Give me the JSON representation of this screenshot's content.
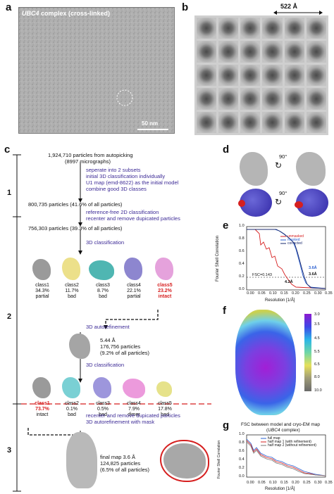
{
  "panels": {
    "a": "a",
    "b": "b",
    "c": "c",
    "d": "d",
    "e": "e",
    "f": "f",
    "g": "g"
  },
  "panel_a": {
    "title_italic": "UBC4",
    "title_rest": " complex (cross-linked)",
    "scale_bar": "50 nm"
  },
  "panel_b": {
    "scale": "522 Å"
  },
  "panel_c": {
    "stages": [
      "1",
      "2",
      "3"
    ],
    "autopicking": "1,924,710 particles from autopicking",
    "micrographs": "(8997 micrographs)",
    "step1": [
      "seperate into 2 subsets",
      "initial 3D classification individually",
      "U1 map (emd-8622) as the initial model",
      "combine good 3D classes"
    ],
    "result1": "800,735 particles (41.6% of all particles)",
    "step2": [
      "reference-free 2D classification",
      "recenter and remove dupicated particles"
    ],
    "result2": "756,303 particles (39.3% of all particles)",
    "step3": "3D classification",
    "classes_round1": [
      {
        "name": "class1",
        "pct": "34.3%",
        "status": "partial",
        "highlight": false
      },
      {
        "name": "class2",
        "pct": "11.7%",
        "status": "bad",
        "highlight": false
      },
      {
        "name": "class3",
        "pct": "8.7%",
        "status": "bad",
        "highlight": false
      },
      {
        "name": "class4",
        "pct": "22.1%",
        "status": "partial",
        "highlight": false
      },
      {
        "name": "class5",
        "pct": "23.2%",
        "status": "intact",
        "highlight": true
      }
    ],
    "step4": "3D autorefinement",
    "refine_res": "5.44 Å",
    "refine_particles": "176,756 particles",
    "refine_pct": "(9.2% of all particles)",
    "step5": "3D classification",
    "classes_round2": [
      {
        "name": "class1",
        "pct": "73.7%",
        "status": "intact",
        "highlight": true
      },
      {
        "name": "class2",
        "pct": "0.1%",
        "status": "bad",
        "highlight": false
      },
      {
        "name": "class3",
        "pct": "0.5%",
        "status": "bad",
        "highlight": false
      },
      {
        "name": "class4",
        "pct": "7.9%",
        "status": "dimer",
        "highlight": false
      },
      {
        "name": "class5",
        "pct": "17.8%",
        "status": "bad",
        "highlight": false
      }
    ],
    "step6": [
      "recenter and remove dupicated particles",
      "3D autorefinement with mask"
    ],
    "final_map": "final map 3.6 Å",
    "final_particles": "124,825 particles",
    "final_pct": "(6.5% of all particles)"
  },
  "panel_d": {
    "rot1": "90°",
    "rot2": "90°"
  },
  "panel_e": {
    "ylabel": "Fourier Shell Correlation",
    "xlabel": "Resolution [1/Å]",
    "legend": [
      "unmasked",
      "masked",
      "corrected"
    ],
    "fsc_label": "FSC=0.143",
    "ann_42": "4.2Å",
    "ann_36a": "3.6Å",
    "ann_36b": "3.6Å",
    "xticks": [
      "0.00",
      "0.05",
      "0.10",
      "0.15",
      "0.20",
      "0.25",
      "0.30",
      "0.35"
    ],
    "yticks": [
      "0.0",
      "0.2",
      "0.4",
      "0.6",
      "0.8",
      "1.0"
    ]
  },
  "panel_f": {
    "scale": [
      "3.0",
      "3.5",
      "4.5",
      "5.5",
      "6.5",
      "8.0",
      "10.0"
    ]
  },
  "panel_g": {
    "title": "FSC between model and cryo-EM map",
    "subtitle_italic": "UBC4",
    "subtitle_rest": " complex)",
    "subtitle_open": "(",
    "legend": [
      "full map",
      "half map 1 (with refinement)",
      "half map 2 (without refinement)"
    ],
    "ylabel": "Fourier Shell Correlation",
    "xlabel": "Resolution [1/Å]",
    "xticks": [
      "0.00",
      "0.05",
      "0.10",
      "0.15",
      "0.20",
      "0.25",
      "0.30",
      "0.35"
    ],
    "yticks": [
      "0.0",
      "0.2",
      "0.4",
      "0.6",
      "0.8",
      "1.0"
    ]
  },
  "colors": {
    "purple": "#3c2a96",
    "red": "#d61f1f",
    "blue": "#2a5fd0",
    "navy": "#1a2a6e"
  }
}
